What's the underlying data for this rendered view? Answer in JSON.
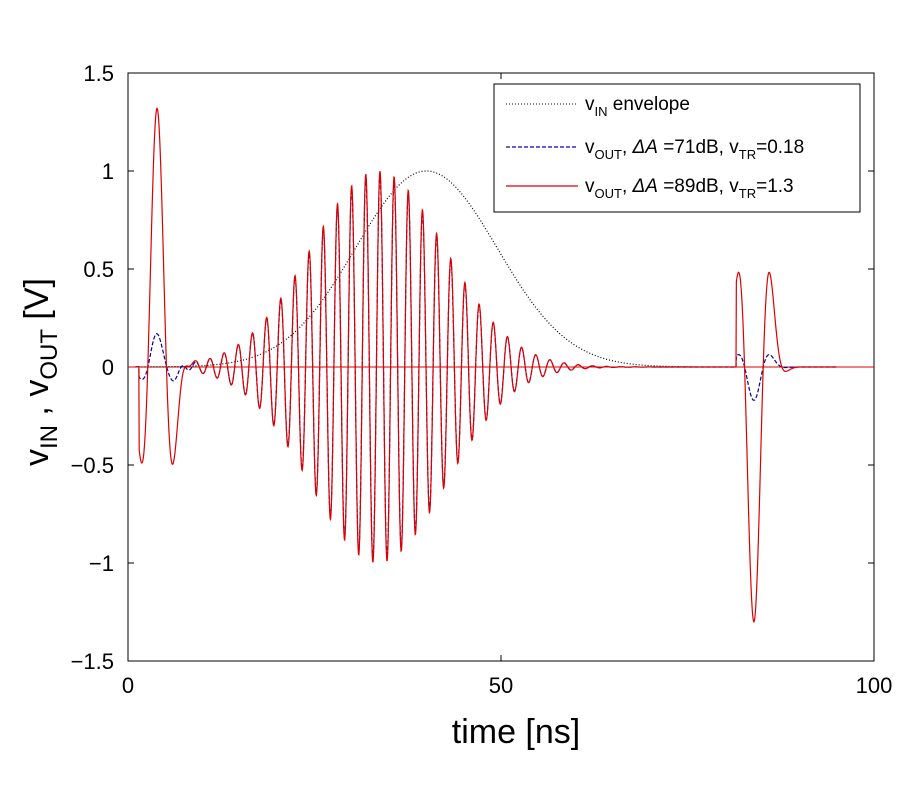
{
  "chart_data": {
    "type": "line",
    "title": "",
    "xlabel": "time [ns]",
    "ylabel_parts": {
      "v1": "v",
      "sub1": "IN",
      "sep": " , ",
      "v2": "v",
      "sub2": "OUT",
      "unit": " [V]"
    },
    "xlim": [
      0,
      100
    ],
    "ylim": [
      -1.5,
      1.5
    ],
    "xticks": [
      0,
      50,
      100
    ],
    "yticks": [
      -1.5,
      -1,
      -0.5,
      0,
      0.5,
      1,
      1.5
    ],
    "xtick_labels": [
      "0",
      "50",
      "100"
    ],
    "ytick_labels": [
      "−1.5",
      "−1",
      "−0.5",
      "0",
      "0.5",
      "1",
      "1.5"
    ],
    "grid": false,
    "legend_position": "top-right",
    "series": [
      {
        "name": "vIN envelope",
        "legend": {
          "v": "v",
          "sub": "IN",
          "rest": " envelope"
        },
        "color": "#000000",
        "style": "dotted",
        "envelope": {
          "t0": 1,
          "t1": 76,
          "center": 40,
          "sigma": 9.5,
          "amplitude": 1.0
        }
      },
      {
        "name": "vOUT, ΔA =71dB, vTR=0.18",
        "legend": {
          "v": "v",
          "sub": "OUT",
          "mid": ", ",
          "delta": "ΔA",
          "eq": " =71dB, ",
          "v2": "v",
          "sub2": "TR",
          "tail": "=0.18"
        },
        "color": "#0000aa",
        "style": "dashed",
        "carrier": {
          "t0": 1,
          "t1": 75,
          "center": 33.5,
          "sigma": 9.0,
          "amplitude": 0.98,
          "period_ns": 1.9
        },
        "transients": [
          {
            "t": 1.5,
            "amp": 0.17,
            "tau": 2.4,
            "period": 5.0
          },
          {
            "t": 81.5,
            "amp": -0.17,
            "tau": 2.4,
            "period": 5.0
          }
        ]
      },
      {
        "name": "vOUT, ΔA =89dB, vTR=1.3",
        "legend": {
          "v": "v",
          "sub": "OUT",
          "mid": ", ",
          "delta": "ΔA",
          "eq": " =89dB, ",
          "v2": "v",
          "sub2": "TR",
          "tail": "=1.3"
        },
        "color": "#dd0000",
        "style": "solid",
        "carrier": {
          "t0": 1,
          "t1": 75,
          "center": 33.5,
          "sigma": 9.0,
          "amplitude": 1.0,
          "period_ns": 1.9
        },
        "transients": [
          {
            "t": 1.5,
            "amp": 1.32,
            "tau": 2.4,
            "period": 5.0
          },
          {
            "t": 81.5,
            "amp": -1.3,
            "tau": 2.4,
            "period": 5.0
          }
        ]
      }
    ]
  }
}
